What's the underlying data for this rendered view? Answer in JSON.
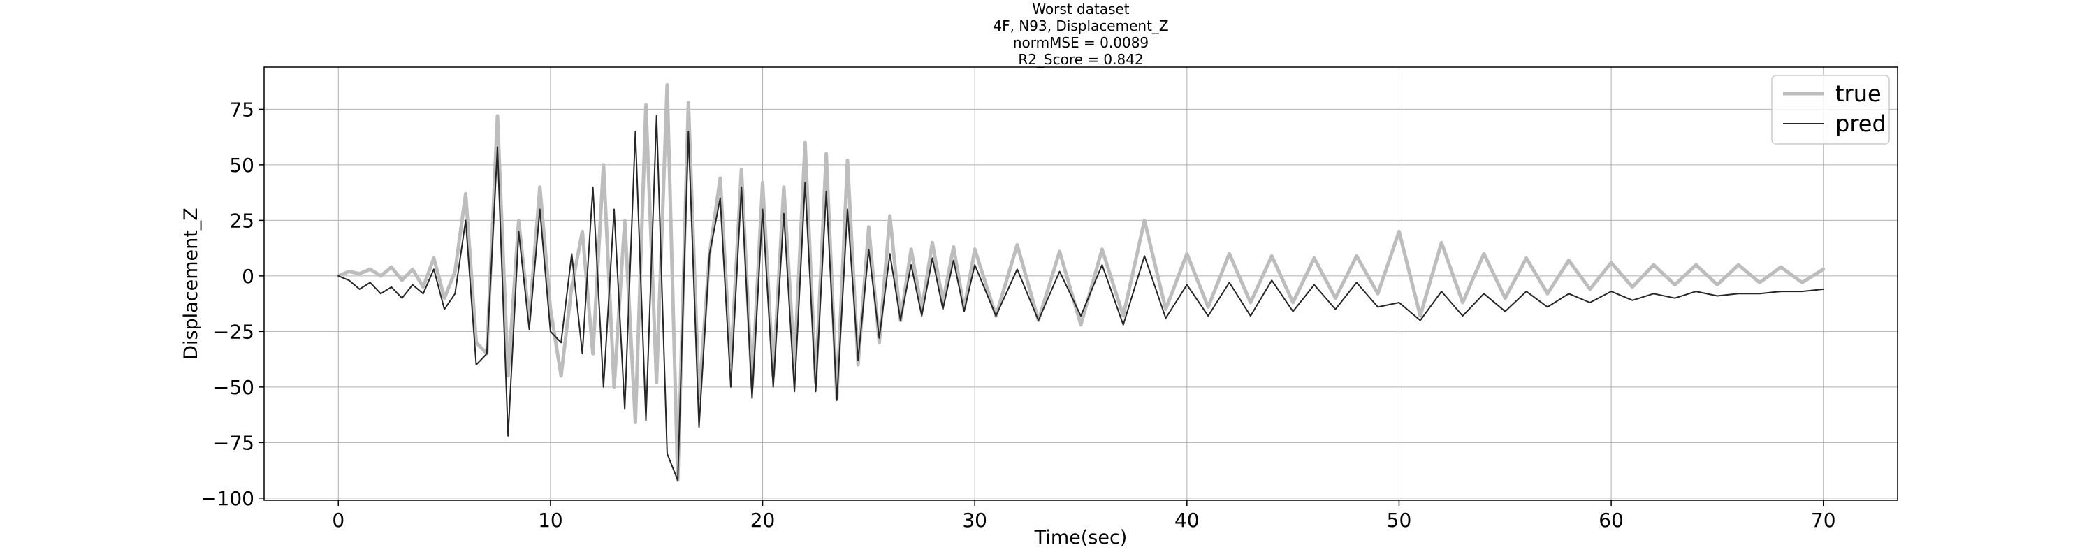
{
  "chart_data": {
    "type": "line",
    "title_lines": [
      "Worst dataset",
      "4F, N93, Displacement_Z",
      "normMSE = 0.0089",
      "R2_Score = 0.842"
    ],
    "xlabel": "Time(sec)",
    "ylabel": "Displacement_Z",
    "xlim": [
      -3.5,
      73.5
    ],
    "ylim": [
      -101,
      94
    ],
    "x_ticks": [
      0,
      10,
      20,
      30,
      40,
      50,
      60,
      70
    ],
    "y_ticks": [
      -100,
      -75,
      -50,
      -25,
      0,
      25,
      50,
      75
    ],
    "grid": true,
    "legend": {
      "placement": "top-right",
      "entries": [
        {
          "label": "true",
          "color": "#bdbdbd"
        },
        {
          "label": "pred",
          "color": "#262626"
        }
      ]
    },
    "series": [
      {
        "name": "true",
        "color": "#bdbdbd",
        "x": [
          0,
          0.5,
          1,
          1.5,
          2,
          2.5,
          3,
          3.5,
          4,
          4.5,
          5,
          5.5,
          6,
          6.5,
          7,
          7.5,
          8,
          8.5,
          9,
          9.5,
          10,
          10.5,
          11,
          11.5,
          12,
          12.5,
          13,
          13.5,
          14,
          14.5,
          15,
          15.5,
          16,
          16.5,
          17,
          17.5,
          18,
          18.5,
          19,
          19.5,
          20,
          20.5,
          21,
          21.5,
          22,
          22.5,
          23,
          23.5,
          24,
          24.5,
          25,
          25.5,
          26,
          26.5,
          27,
          27.5,
          28,
          28.5,
          29,
          29.5,
          30,
          31,
          32,
          33,
          34,
          35,
          36,
          37,
          38,
          39,
          40,
          41,
          42,
          43,
          44,
          45,
          46,
          47,
          48,
          49,
          50,
          51,
          52,
          53,
          54,
          55,
          56,
          57,
          58,
          59,
          60,
          61,
          62,
          63,
          64,
          65,
          66,
          67,
          68,
          69,
          70
        ],
        "y": [
          0,
          2,
          1,
          3,
          0,
          4,
          -2,
          3,
          -5,
          8,
          -10,
          2,
          37,
          -30,
          -35,
          72,
          -45,
          25,
          -20,
          40,
          -15,
          -45,
          -5,
          20,
          -35,
          50,
          -50,
          25,
          -66,
          77,
          -48,
          86,
          -92,
          78,
          -55,
          10,
          44,
          -40,
          48,
          -50,
          42,
          -45,
          40,
          -40,
          60,
          -48,
          55,
          -55,
          52,
          -40,
          22,
          -30,
          27,
          -20,
          12,
          -15,
          15,
          -12,
          13,
          -15,
          12,
          -18,
          14,
          -20,
          11,
          -22,
          12,
          -18,
          25,
          -15,
          10,
          -14,
          10,
          -12,
          9,
          -12,
          8,
          -10,
          9,
          -8,
          20,
          -18,
          15,
          -12,
          10,
          -10,
          8,
          -8,
          7,
          -6,
          6,
          -5,
          5,
          -4,
          5,
          -4,
          5,
          -3,
          4,
          -3,
          3
        ]
      },
      {
        "name": "pred",
        "color": "#262626",
        "x": [
          0,
          0.5,
          1,
          1.5,
          2,
          2.5,
          3,
          3.5,
          4,
          4.5,
          5,
          5.5,
          6,
          6.5,
          7,
          7.5,
          8,
          8.5,
          9,
          9.5,
          10,
          10.5,
          11,
          11.5,
          12,
          12.5,
          13,
          13.5,
          14,
          14.5,
          15,
          15.5,
          16,
          16.5,
          17,
          17.5,
          18,
          18.5,
          19,
          19.5,
          20,
          20.5,
          21,
          21.5,
          22,
          22.5,
          23,
          23.5,
          24,
          24.5,
          25,
          25.5,
          26,
          26.5,
          27,
          27.5,
          28,
          28.5,
          29,
          29.5,
          30,
          31,
          32,
          33,
          34,
          35,
          36,
          37,
          38,
          39,
          40,
          41,
          42,
          43,
          44,
          45,
          46,
          47,
          48,
          49,
          50,
          51,
          52,
          53,
          54,
          55,
          56,
          57,
          58,
          59,
          60,
          61,
          62,
          63,
          64,
          65,
          66,
          67,
          68,
          69,
          70
        ],
        "y": [
          0,
          -2,
          -6,
          -3,
          -8,
          -5,
          -10,
          -4,
          -8,
          3,
          -15,
          -8,
          25,
          -40,
          -35,
          58,
          -72,
          20,
          -24,
          30,
          -25,
          -30,
          10,
          -35,
          40,
          -50,
          30,
          -60,
          65,
          -65,
          72,
          -80,
          -92,
          65,
          -68,
          10,
          35,
          -50,
          40,
          -55,
          30,
          -50,
          28,
          -52,
          42,
          -52,
          38,
          -56,
          30,
          -38,
          12,
          -28,
          10,
          -20,
          5,
          -18,
          8,
          -15,
          7,
          -16,
          5,
          -18,
          3,
          -20,
          2,
          -18,
          5,
          -22,
          9,
          -19,
          -4,
          -18,
          -3,
          -18,
          -2,
          -16,
          -4,
          -15,
          -3,
          -14,
          -12,
          -20,
          -7,
          -18,
          -8,
          -16,
          -7,
          -14,
          -8,
          -12,
          -7,
          -11,
          -8,
          -10,
          -7,
          -9,
          -8,
          -8,
          -7,
          -7,
          -6
        ]
      }
    ]
  }
}
